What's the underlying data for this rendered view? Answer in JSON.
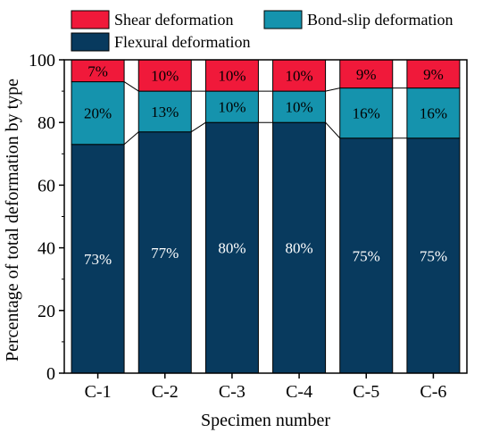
{
  "chart_data": {
    "type": "bar",
    "stacked": true,
    "title": "",
    "xlabel": "Specimen number",
    "ylabel": "Percentage of total deformation by type",
    "ylim": [
      0,
      100
    ],
    "yticks": [
      0,
      20,
      40,
      60,
      80,
      100
    ],
    "categories": [
      "C-1",
      "C-2",
      "C-3",
      "C-4",
      "C-5",
      "C-6"
    ],
    "series": [
      {
        "name": "Flexural deformation",
        "color": "#083a5e",
        "values": [
          73,
          77,
          80,
          80,
          75,
          75
        ],
        "labels": [
          "73%",
          "77%",
          "80%",
          "80%",
          "75%",
          "75%"
        ]
      },
      {
        "name": "Bond-slip deformation",
        "color": "#1593ad",
        "values": [
          20,
          13,
          10,
          10,
          16,
          16
        ],
        "labels": [
          "20%",
          "13%",
          "10%",
          "10%",
          "16%",
          "16%"
        ]
      },
      {
        "name": "Shear deformation",
        "color": "#f0193a",
        "values": [
          7,
          10,
          10,
          10,
          9,
          9
        ],
        "labels": [
          "7%",
          "10%",
          "10%",
          "10%",
          "9%",
          "9%"
        ]
      }
    ],
    "legend": {
      "position": "top",
      "order": [
        2,
        1,
        0
      ]
    },
    "grid": false
  }
}
